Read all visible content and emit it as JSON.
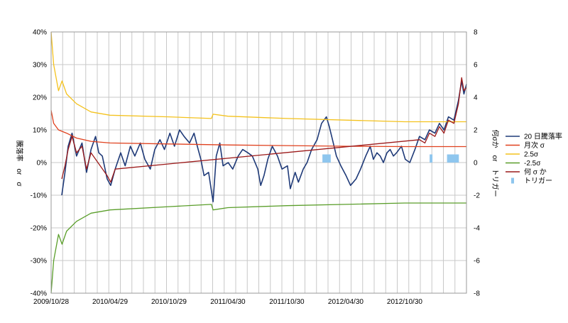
{
  "chart_data": {
    "type": "line",
    "title": "",
    "y_left_label": "騰落率　or　σ",
    "y_right_label": "何σか　or　トリガー",
    "y_left_ticks": [
      "40%",
      "30%",
      "20%",
      "10%",
      "0%",
      "-10%",
      "-20%",
      "-30%",
      "-40%"
    ],
    "y_right_ticks": [
      "8",
      "6",
      "4",
      "2",
      "0",
      "-2",
      "-4",
      "-6",
      "-8"
    ],
    "ylim_left": [
      -0.4,
      0.4
    ],
    "ylim_right": [
      -8,
      8
    ],
    "x_ticks": [
      "2009/10/28",
      "2010/04/29",
      "2010/10/29",
      "2011/04/30",
      "2011/10/30",
      "2012/04/30",
      "2012/10/30"
    ],
    "x_range": [
      "2009/10/28",
      "2013/05/10"
    ],
    "grid": true,
    "legend_position": "right",
    "legend": [
      {
        "name": "20 日騰落率",
        "color": "#1f3a78",
        "kind": "line"
      },
      {
        "name": "月次 σ",
        "color": "#e0411e",
        "kind": "line"
      },
      {
        "name": "2.5σ",
        "color": "#f4c21d",
        "kind": "line"
      },
      {
        "name": "-2.5σ",
        "color": "#5a9e2a",
        "kind": "line"
      },
      {
        "name": "何 σ か",
        "color": "#9c1a1a",
        "kind": "line"
      },
      {
        "name": "トリガー",
        "color": "#8ec6ee",
        "kind": "bar"
      }
    ],
    "series": [
      {
        "name": "20 日騰落率",
        "axis": "left",
        "color": "#1f3a78",
        "points": [
          [
            "2009/11/30",
            -0.1
          ],
          [
            "2009/12/10",
            -0.03
          ],
          [
            "2009/12/20",
            0.05
          ],
          [
            "2010/01/01",
            0.09
          ],
          [
            "2010/01/15",
            0.02
          ],
          [
            "2010/02/01",
            0.06
          ],
          [
            "2010/02/15",
            -0.03
          ],
          [
            "2010/03/01",
            0.04
          ],
          [
            "2010/03/15",
            0.08
          ],
          [
            "2010/03/25",
            0.03
          ],
          [
            "2010/04/05",
            0.02
          ],
          [
            "2010/04/20",
            -0.05
          ],
          [
            "2010/05/01",
            -0.07
          ],
          [
            "2010/05/15",
            -0.02
          ],
          [
            "2010/06/01",
            0.03
          ],
          [
            "2010/06/15",
            -0.01
          ],
          [
            "2010/07/01",
            0.05
          ],
          [
            "2010/07/15",
            0.02
          ],
          [
            "2010/08/01",
            0.06
          ],
          [
            "2010/08/15",
            0.01
          ],
          [
            "2010/09/01",
            -0.02
          ],
          [
            "2010/09/15",
            0.04
          ],
          [
            "2010/10/01",
            0.07
          ],
          [
            "2010/10/15",
            0.04
          ],
          [
            "2010/11/01",
            0.09
          ],
          [
            "2010/11/15",
            0.05
          ],
          [
            "2010/12/01",
            0.1
          ],
          [
            "2010/12/15",
            0.08
          ],
          [
            "2011/01/01",
            0.06
          ],
          [
            "2011/01/15",
            0.09
          ],
          [
            "2011/01/25",
            0.05
          ],
          [
            "2011/02/05",
            0.01
          ],
          [
            "2011/02/15",
            -0.04
          ],
          [
            "2011/03/01",
            -0.03
          ],
          [
            "2011/03/15",
            -0.12
          ],
          [
            "2011/03/25",
            0.02
          ],
          [
            "2011/04/05",
            0.06
          ],
          [
            "2011/04/15",
            -0.01
          ],
          [
            "2011/05/01",
            0.0
          ],
          [
            "2011/05/15",
            -0.02
          ],
          [
            "2011/06/01",
            0.02
          ],
          [
            "2011/06/15",
            0.04
          ],
          [
            "2011/07/01",
            0.03
          ],
          [
            "2011/07/15",
            0.02
          ],
          [
            "2011/08/01",
            -0.02
          ],
          [
            "2011/08/10",
            -0.07
          ],
          [
            "2011/08/20",
            -0.04
          ],
          [
            "2011/09/01",
            0.01
          ],
          [
            "2011/09/15",
            0.05
          ],
          [
            "2011/10/01",
            0.02
          ],
          [
            "2011/10/15",
            -0.02
          ],
          [
            "2011/11/01",
            -0.01
          ],
          [
            "2011/11/10",
            -0.08
          ],
          [
            "2011/11/25",
            -0.03
          ],
          [
            "2011/12/05",
            -0.06
          ],
          [
            "2011/12/20",
            -0.02
          ],
          [
            "2012/01/01",
            0.0
          ],
          [
            "2012/01/15",
            0.04
          ],
          [
            "2012/02/01",
            0.07
          ],
          [
            "2012/02/15",
            0.12
          ],
          [
            "2012/03/01",
            0.14
          ],
          [
            "2012/03/10",
            0.11
          ],
          [
            "2012/03/20",
            0.07
          ],
          [
            "2012/04/01",
            0.02
          ],
          [
            "2012/04/15",
            -0.01
          ],
          [
            "2012/05/01",
            -0.04
          ],
          [
            "2012/05/15",
            -0.07
          ],
          [
            "2012/06/01",
            -0.05
          ],
          [
            "2012/06/15",
            -0.02
          ],
          [
            "2012/07/01",
            0.02
          ],
          [
            "2012/07/15",
            0.05
          ],
          [
            "2012/07/25",
            0.01
          ],
          [
            "2012/08/05",
            0.03
          ],
          [
            "2012/08/15",
            0.02
          ],
          [
            "2012/08/25",
            0.0
          ],
          [
            "2012/09/05",
            0.03
          ],
          [
            "2012/09/15",
            0.04
          ],
          [
            "2012/09/25",
            0.02
          ],
          [
            "2012/10/05",
            0.03
          ],
          [
            "2012/10/20",
            0.05
          ],
          [
            "2012/11/01",
            0.01
          ],
          [
            "2012/11/15",
            0.0
          ],
          [
            "2012/12/01",
            0.04
          ],
          [
            "2012/12/15",
            0.08
          ],
          [
            "2013/01/01",
            0.07
          ],
          [
            "2013/01/15",
            0.1
          ],
          [
            "2013/02/01",
            0.09
          ],
          [
            "2013/02/15",
            0.12
          ],
          [
            "2013/03/01",
            0.1
          ],
          [
            "2013/03/15",
            0.14
          ],
          [
            "2013/04/01",
            0.13
          ],
          [
            "2013/04/15",
            0.19
          ],
          [
            "2013/04/25",
            0.25
          ],
          [
            "2013/05/02",
            0.21
          ],
          [
            "2013/05/10",
            0.24
          ]
        ]
      },
      {
        "name": "月次 σ",
        "axis": "left",
        "color": "#e0411e",
        "points": [
          [
            "2009/10/28",
            0.16
          ],
          [
            "2009/11/05",
            0.12
          ],
          [
            "2009/11/20",
            0.1
          ],
          [
            "2009/12/15",
            0.09
          ],
          [
            "2010/01/15",
            0.075
          ],
          [
            "2010/03/01",
            0.065
          ],
          [
            "2010/04/29",
            0.06
          ],
          [
            "2010/10/29",
            0.057
          ],
          [
            "2011/04/30",
            0.054
          ],
          [
            "2011/10/30",
            0.052
          ],
          [
            "2012/04/30",
            0.05
          ],
          [
            "2012/10/30",
            0.049
          ],
          [
            "2013/05/10",
            0.049
          ]
        ]
      },
      {
        "name": "2.5σ",
        "axis": "left",
        "color": "#f4c21d",
        "points": [
          [
            "2009/10/28",
            0.4
          ],
          [
            "2009/11/05",
            0.3
          ],
          [
            "2009/11/20",
            0.22
          ],
          [
            "2009/12/01",
            0.25
          ],
          [
            "2009/12/15",
            0.21
          ],
          [
            "2010/01/15",
            0.18
          ],
          [
            "2010/03/01",
            0.155
          ],
          [
            "2010/04/29",
            0.145
          ],
          [
            "2010/10/29",
            0.14
          ],
          [
            "2011/03/10",
            0.135
          ],
          [
            "2011/03/15",
            0.148
          ],
          [
            "2011/04/30",
            0.142
          ],
          [
            "2011/10/30",
            0.135
          ],
          [
            "2012/04/30",
            0.13
          ],
          [
            "2012/10/30",
            0.125
          ],
          [
            "2013/05/10",
            0.125
          ]
        ]
      },
      {
        "name": "-2.5σ",
        "axis": "left",
        "color": "#5a9e2a",
        "points": [
          [
            "2009/10/28",
            -0.4
          ],
          [
            "2009/11/05",
            -0.3
          ],
          [
            "2009/11/20",
            -0.22
          ],
          [
            "2009/12/01",
            -0.25
          ],
          [
            "2009/12/15",
            -0.21
          ],
          [
            "2010/01/15",
            -0.18
          ],
          [
            "2010/03/01",
            -0.155
          ],
          [
            "2010/04/29",
            -0.145
          ],
          [
            "2010/10/29",
            -0.135
          ],
          [
            "2011/03/10",
            -0.128
          ],
          [
            "2011/03/15",
            -0.145
          ],
          [
            "2011/04/30",
            -0.138
          ],
          [
            "2011/10/30",
            -0.132
          ],
          [
            "2012/04/30",
            -0.128
          ],
          [
            "2012/10/30",
            -0.124
          ],
          [
            "2013/05/10",
            -0.124
          ]
        ]
      },
      {
        "name": "何 σ か",
        "axis": "left",
        "color": "#9c1a1a",
        "points": [
          [
            "2009/11/30",
            -0.05
          ],
          [
            "2009/12/10",
            -0.01
          ],
          [
            "2009/12/20",
            0.04
          ],
          [
            "2010/01/01",
            0.08
          ],
          [
            "2010/01/15",
            0.03
          ],
          [
            "2010/02/01",
            0.05
          ],
          [
            "2010/02/15",
            -0.02
          ],
          [
            "2010/03/01",
            0.03
          ],
          [
            "2010/04/20",
            -0.04
          ],
          [
            "2010/05/01",
            -0.06
          ],
          [
            "2010/05/15",
            -0.02
          ],
          [
            "2012/12/15",
            0.07
          ],
          [
            "2013/01/01",
            0.06
          ],
          [
            "2013/01/15",
            0.09
          ],
          [
            "2013/02/01",
            0.08
          ],
          [
            "2013/02/15",
            0.11
          ],
          [
            "2013/03/01",
            0.09
          ],
          [
            "2013/03/15",
            0.13
          ],
          [
            "2013/04/01",
            0.12
          ],
          [
            "2013/04/15",
            0.18
          ],
          [
            "2013/04/25",
            0.26
          ],
          [
            "2013/05/02",
            0.22
          ],
          [
            "2013/05/10",
            0.23
          ]
        ]
      }
    ],
    "trigger": {
      "name": "トリガー",
      "axis": "right",
      "color": "#8ec6ee",
      "points": [
        [
          "2012/02/22",
          0.5
        ],
        [
          "2012/03/01",
          0.5
        ],
        [
          "2012/03/05",
          0.5
        ],
        [
          "2012/03/10",
          0.5
        ],
        [
          "2013/01/20",
          0.5
        ],
        [
          "2013/03/15",
          0.5
        ],
        [
          "2013/03/22",
          0.5
        ],
        [
          "2013/03/29",
          0.5
        ],
        [
          "2013/04/05",
          0.5
        ],
        [
          "2013/04/12",
          0.5
        ]
      ]
    }
  }
}
